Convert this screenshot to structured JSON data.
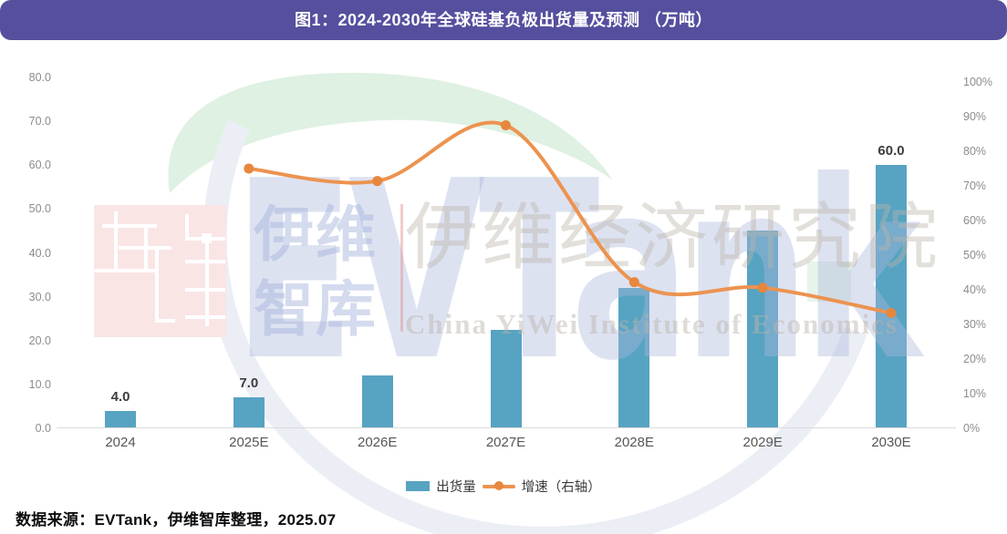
{
  "header": {
    "title": "图1：2024-2030年全球硅基负极出货量及预测 （万吨）"
  },
  "chart_data": {
    "type": "bar",
    "subtype": "bar+line combo, dual axis",
    "title": "图1：2024-2030年全球硅基负极出货量及预测 （万吨）",
    "categories": [
      "2024",
      "2025E",
      "2026E",
      "2027E",
      "2028E",
      "2029E",
      "2030E"
    ],
    "series": [
      {
        "name": "出货量",
        "type": "bar",
        "axis": "left",
        "unit": "万吨",
        "values": [
          4.0,
          7.0,
          12.0,
          22.5,
          32.0,
          45.0,
          60.0
        ],
        "data_labels": [
          "4.0",
          "7.0",
          null,
          null,
          null,
          null,
          "60.0"
        ]
      },
      {
        "name": "增速（右轴）",
        "type": "line",
        "axis": "right",
        "unit": "%",
        "values": [
          null,
          75.0,
          71.4,
          87.5,
          42.2,
          40.6,
          33.3
        ]
      }
    ],
    "left_axis": {
      "min": 0,
      "max": 80,
      "step": 10,
      "tick_labels": [
        "0.0",
        "10.0",
        "20.0",
        "30.0",
        "40.0",
        "50.0",
        "60.0",
        "70.0",
        "80.0"
      ]
    },
    "right_axis": {
      "min": 0,
      "max": 100,
      "step": 10,
      "tick_labels": [
        "0%",
        "10%",
        "20%",
        "30%",
        "40%",
        "50%",
        "60%",
        "70%",
        "80%",
        "90%",
        "100%"
      ]
    },
    "grid": false,
    "legend_position": "bottom"
  },
  "legend": {
    "bars": "出货量",
    "line": "增速（右轴）"
  },
  "watermarks": {
    "evtank": "EVTank",
    "yiwei_line1": "伊维",
    "yiwei_line2": "智库",
    "institute_cn": "伊维经济研究院",
    "institute_en": "China YiWei Institute of Economics"
  },
  "footer": {
    "source": "数据来源：EVTank，伊维智库整理，2025.07"
  },
  "colors": {
    "header_bg": "#554F9E",
    "bar": "#57A3C2",
    "line": "#EC9350",
    "line_dot": "#E6873D",
    "baseline": "#DBDBDB",
    "tick_text": "#8C8C8C",
    "x_label_text": "#565656",
    "data_label_text": "#3D3D3D",
    "crescent_green": "#DFF1E2",
    "ring_lavender": "#ECEEF6",
    "logo_pink": "#FAE5E5",
    "small_square_green": "#E7F4EA"
  }
}
